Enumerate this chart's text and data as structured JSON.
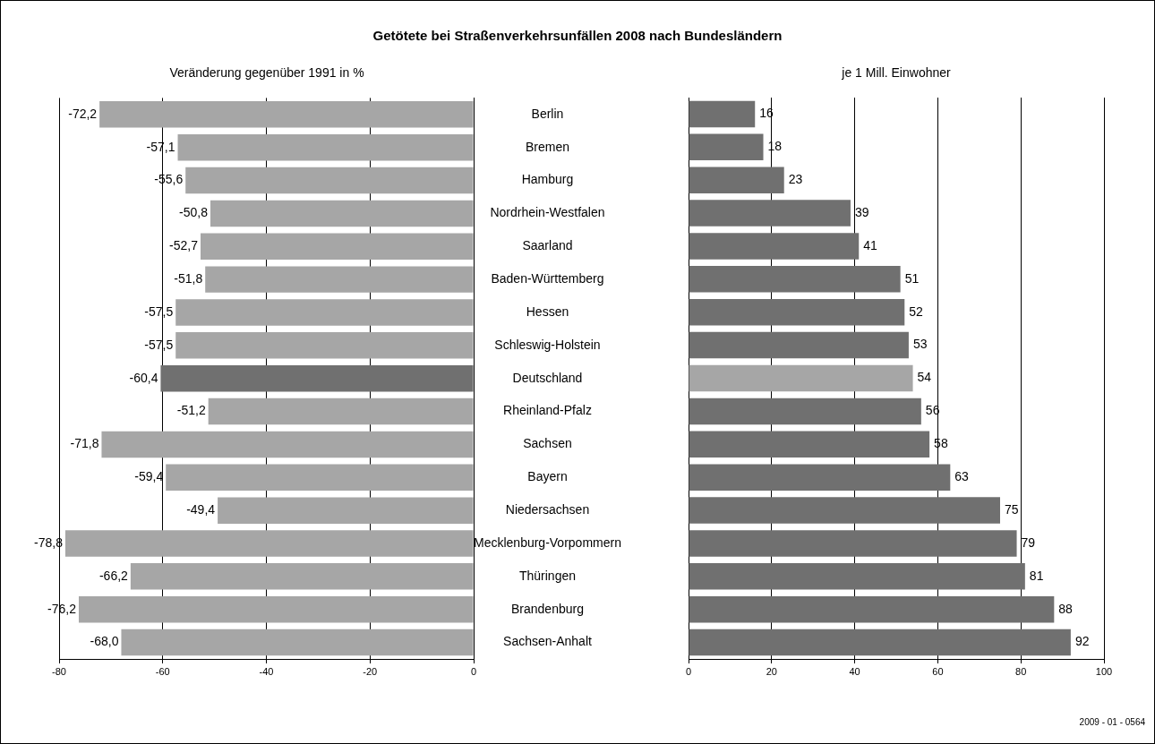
{
  "chart_data": [
    {
      "type": "bar",
      "orientation": "horizontal",
      "title": "Getötete bei Straßenverkehrsunfällen 2008 nach Bundesländern",
      "subtitle": "Veränderung gegenüber 1991 in %",
      "categories": [
        "Berlin",
        "Bremen",
        "Hamburg",
        "Nordrhein-Westfalen",
        "Saarland",
        "Baden-Württemberg",
        "Hessen",
        "Schleswig-Holstein",
        "Deutschland",
        "Rheinland-Pfalz",
        "Sachsen",
        "Bayern",
        "Niedersachsen",
        "Mecklenburg-Vorpommern",
        "Thüringen",
        "Brandenburg",
        "Sachsen-Anhalt"
      ],
      "values": [
        -72.2,
        -57.1,
        -55.6,
        -50.8,
        -52.7,
        -51.8,
        -57.5,
        -57.5,
        -60.4,
        -51.2,
        -71.8,
        -59.4,
        -49.4,
        -78.8,
        -66.2,
        -76.2,
        -68.0
      ],
      "value_labels": [
        "-72,2",
        "-57,1",
        "-55,6",
        "-50,8",
        "-52,7",
        "-51,8",
        "-57,5",
        "-57,5",
        "-60,4",
        "-51,2",
        "-71,8",
        "-59,4",
        "-49,4",
        "-78,8",
        "-66,2",
        "-76,2",
        "-68,0"
      ],
      "colors": [
        "#a6a6a6",
        "#a6a6a6",
        "#a6a6a6",
        "#a6a6a6",
        "#a6a6a6",
        "#a6a6a6",
        "#a6a6a6",
        "#a6a6a6",
        "#707070",
        "#a6a6a6",
        "#a6a6a6",
        "#a6a6a6",
        "#a6a6a6",
        "#a6a6a6",
        "#a6a6a6",
        "#a6a6a6",
        "#a6a6a6"
      ],
      "xlim": [
        -80,
        0
      ],
      "xticks": [
        -80,
        -60,
        -40,
        -20,
        0
      ],
      "grid": "x"
    },
    {
      "type": "bar",
      "orientation": "horizontal",
      "subtitle": "je 1 Mill. Einwohner",
      "categories": [
        null,
        null,
        null,
        null,
        null,
        null,
        null,
        null,
        null,
        null,
        null,
        null,
        null,
        null,
        null,
        null,
        null
      ],
      "values": [
        16,
        18,
        23,
        39,
        41,
        51,
        52,
        53,
        54,
        56,
        58,
        63,
        75,
        79,
        81,
        88,
        92
      ],
      "colors": [
        "#707070",
        "#707070",
        "#707070",
        "#707070",
        "#707070",
        "#707070",
        "#707070",
        "#707070",
        "#a6a6a6",
        "#707070",
        "#707070",
        "#707070",
        "#707070",
        "#707070",
        "#707070",
        "#707070",
        "#707070"
      ],
      "data_labels": true,
      "xlim": [
        0,
        100
      ],
      "xticks": [
        0,
        20,
        40,
        60,
        80,
        100
      ],
      "grid": "x",
      "tick_labels": "x",
      "annotations": [
        "2009 - 01 - 0564"
      ]
    }
  ]
}
